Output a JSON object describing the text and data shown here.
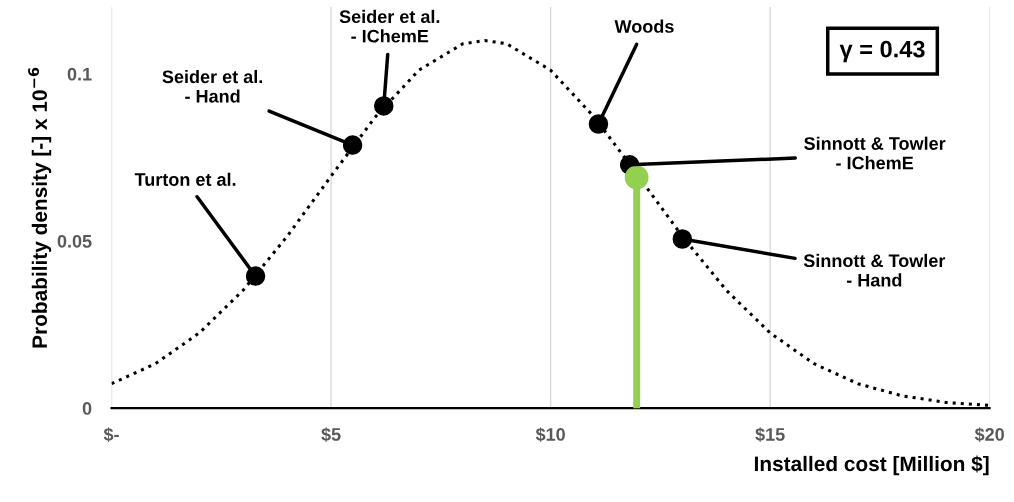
{
  "chart_data": {
    "type": "line",
    "xlabel": "Installed cost [Million $]",
    "ylabel": "Probability density [-] x 10$^{−6}$",
    "xlim": [
      0,
      20
    ],
    "xticks": [
      {
        "value": 0,
        "label": "$-"
      },
      {
        "value": 5,
        "label": "$5"
      },
      {
        "value": 10,
        "label": "$10"
      },
      {
        "value": 15,
        "label": "$15"
      },
      {
        "value": 20,
        "label": "$20"
      }
    ],
    "ylim": [
      0,
      0.12
    ],
    "yticks": [
      0,
      0.05,
      0.1
    ],
    "grid": "x",
    "legend": false,
    "series": [
      {
        "color": "#000000",
        "line_style": "dotted",
        "marker": "none",
        "x": [
          0,
          1,
          2,
          3,
          4,
          5,
          6,
          7,
          8,
          8.5,
          9,
          10,
          11,
          12,
          13,
          14,
          15,
          16,
          17,
          18,
          19,
          20
        ],
        "values": [
          0.0073,
          0.0133,
          0.0225,
          0.0353,
          0.0514,
          0.0694,
          0.087,
          0.1011,
          0.109,
          0.11,
          0.109,
          0.1011,
          0.087,
          0.0694,
          0.0514,
          0.0353,
          0.0225,
          0.0133,
          0.0073,
          0.0037,
          0.0017,
          0.0008
        ]
      },
      {
        "type": "scatter",
        "color": "#000000",
        "marker": "circle",
        "x": [
          3.28,
          5.49,
          6.2,
          11.09,
          11.8,
          13.0
        ],
        "values": [
          0.0395,
          0.0787,
          0.0904,
          0.085,
          0.0728,
          0.0506
        ]
      },
      {
        "type": "lollipop",
        "color": "#92d050",
        "marker": "circle",
        "x": [
          11.96
        ],
        "values": [
          0.069
        ]
      }
    ],
    "annotations": [
      {
        "text": "Turton et al.",
        "x": 3.28,
        "y": 0.0395
      },
      {
        "text": "Seider et al.\n- Hand",
        "x": 5.49,
        "y": 0.0787
      },
      {
        "text": "Seider et al.\n- IChemE",
        "x": 6.2,
        "y": 0.0904
      },
      {
        "text": "Woods",
        "x": 11.09,
        "y": 0.085
      },
      {
        "text": "Sinnott & Towler\n- IChemE",
        "x": 11.8,
        "y": 0.0728
      },
      {
        "text": "Sinnott & Towler\n- Hand",
        "x": 13.0,
        "y": 0.0506
      },
      "γ = 0.43"
    ]
  }
}
